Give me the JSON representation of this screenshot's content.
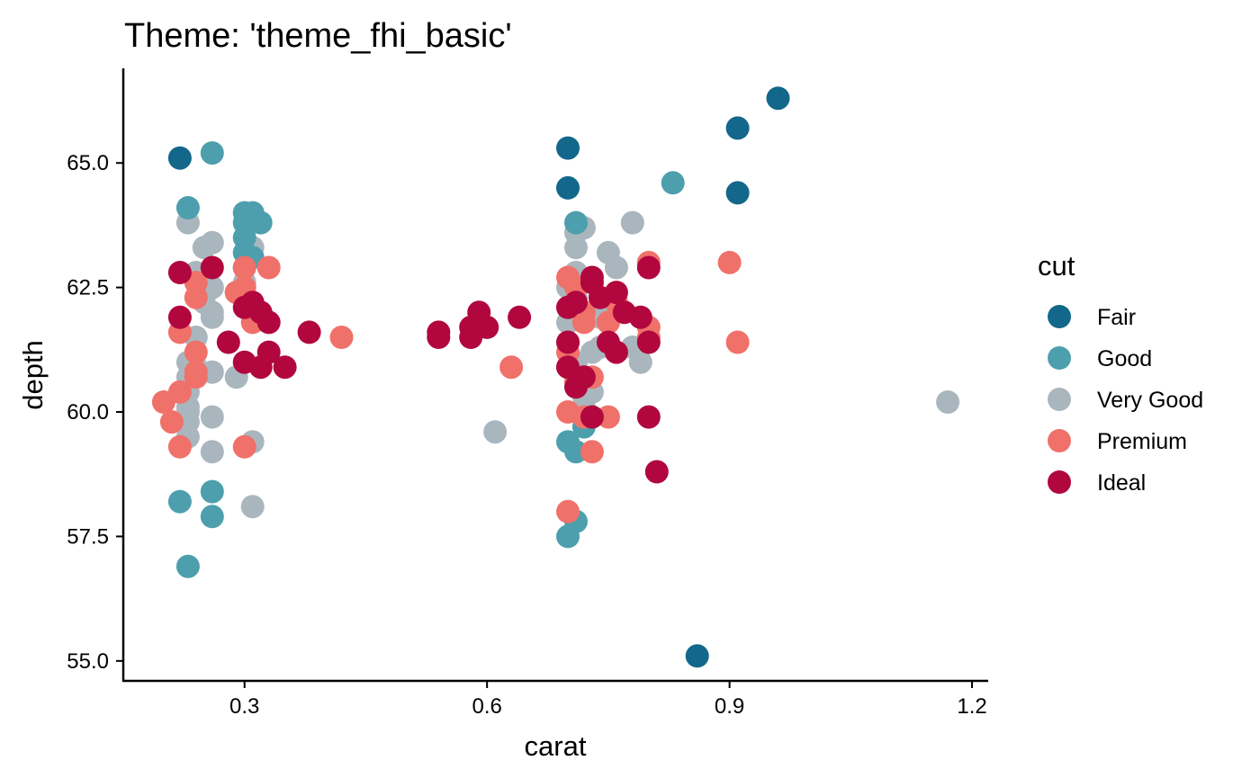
{
  "chart_data": {
    "type": "scatter",
    "title": "Theme: 'theme_fhi_basic'",
    "xlabel": "carat",
    "ylabel": "depth",
    "xlim": [
      0.15,
      1.22
    ],
    "ylim": [
      54.6,
      66.9
    ],
    "x_ticks": [
      {
        "value": 0.3,
        "label": "0.3"
      },
      {
        "value": 0.6,
        "label": "0.6"
      },
      {
        "value": 0.9,
        "label": "0.9"
      },
      {
        "value": 1.2,
        "label": "1.2"
      }
    ],
    "y_ticks": [
      {
        "value": 55.0,
        "label": "55.0"
      },
      {
        "value": 57.5,
        "label": "57.5"
      },
      {
        "value": 60.0,
        "label": "60.0"
      },
      {
        "value": 62.5,
        "label": "62.5"
      },
      {
        "value": 65.0,
        "label": "65.0"
      }
    ],
    "grid": false,
    "legend": {
      "title": "cut",
      "position": "right",
      "entries": [
        {
          "label": "Fair",
          "color": "#12678a"
        },
        {
          "label": "Good",
          "color": "#4d9fad"
        },
        {
          "label": "Very Good",
          "color": "#aab6bd"
        },
        {
          "label": "Premium",
          "color": "#f0706a"
        },
        {
          "label": "Ideal",
          "color": "#b1073e"
        }
      ]
    },
    "series": [
      {
        "name": "Very Good",
        "color": "#aab6bd",
        "points": [
          [
            0.23,
            63.8
          ],
          [
            0.25,
            63.3
          ],
          [
            0.26,
            63.4
          ],
          [
            0.24,
            62.8
          ],
          [
            0.26,
            62.5
          ],
          [
            0.25,
            62.2
          ],
          [
            0.26,
            62.0
          ],
          [
            0.26,
            61.9
          ],
          [
            0.24,
            61.5
          ],
          [
            0.23,
            61.0
          ],
          [
            0.23,
            60.7
          ],
          [
            0.23,
            60.4
          ],
          [
            0.23,
            60.1
          ],
          [
            0.23,
            59.8
          ],
          [
            0.23,
            59.5
          ],
          [
            0.26,
            60.8
          ],
          [
            0.26,
            59.9
          ],
          [
            0.26,
            59.2
          ],
          [
            0.29,
            60.7
          ],
          [
            0.31,
            59.4
          ],
          [
            0.31,
            58.1
          ],
          [
            0.31,
            63.3
          ],
          [
            0.32,
            61.9
          ],
          [
            0.3,
            62.6
          ],
          [
            0.23,
            60.0
          ],
          [
            0.24,
            60.9
          ],
          [
            0.29,
            62.4
          ],
          [
            0.71,
            63.6
          ],
          [
            0.72,
            63.7
          ],
          [
            0.71,
            63.3
          ],
          [
            0.71,
            62.8
          ],
          [
            0.7,
            62.5
          ],
          [
            0.7,
            62.1
          ],
          [
            0.7,
            61.8
          ],
          [
            0.7,
            61.4
          ],
          [
            0.71,
            61.0
          ],
          [
            0.71,
            60.7
          ],
          [
            0.71,
            60.5
          ],
          [
            0.72,
            60.3
          ],
          [
            0.73,
            60.4
          ],
          [
            0.73,
            61.2
          ],
          [
            0.74,
            61.3
          ],
          [
            0.74,
            62.2
          ],
          [
            0.75,
            63.2
          ],
          [
            0.76,
            62.9
          ],
          [
            0.78,
            63.8
          ],
          [
            0.78,
            61.3
          ],
          [
            0.79,
            61.0
          ],
          [
            0.61,
            59.6
          ],
          [
            1.17,
            60.2
          ],
          [
            0.72,
            60.1
          ],
          [
            0.74,
            61.9
          ],
          [
            0.71,
            62.3
          ]
        ]
      },
      {
        "name": "Good",
        "color": "#4d9fad",
        "points": [
          [
            0.23,
            64.1
          ],
          [
            0.26,
            65.2
          ],
          [
            0.3,
            64.0
          ],
          [
            0.31,
            64.0
          ],
          [
            0.3,
            63.8
          ],
          [
            0.32,
            63.8
          ],
          [
            0.3,
            63.5
          ],
          [
            0.3,
            63.2
          ],
          [
            0.31,
            63.1
          ],
          [
            0.3,
            62.9
          ],
          [
            0.22,
            58.2
          ],
          [
            0.26,
            58.4
          ],
          [
            0.26,
            57.9
          ],
          [
            0.23,
            56.9
          ],
          [
            0.71,
            63.8
          ],
          [
            0.83,
            64.6
          ],
          [
            0.72,
            59.7
          ],
          [
            0.7,
            59.4
          ],
          [
            0.71,
            59.2
          ],
          [
            0.71,
            57.8
          ],
          [
            0.7,
            57.5
          ]
        ]
      },
      {
        "name": "Premium",
        "color": "#f0706a",
        "points": [
          [
            0.22,
            61.6
          ],
          [
            0.2,
            60.2
          ],
          [
            0.21,
            59.8
          ],
          [
            0.22,
            60.4
          ],
          [
            0.22,
            59.3
          ],
          [
            0.24,
            61.2
          ],
          [
            0.24,
            60.8
          ],
          [
            0.24,
            60.7
          ],
          [
            0.24,
            62.3
          ],
          [
            0.24,
            62.6
          ],
          [
            0.3,
            62.9
          ],
          [
            0.3,
            62.5
          ],
          [
            0.3,
            62.3
          ],
          [
            0.29,
            62.4
          ],
          [
            0.31,
            61.8
          ],
          [
            0.33,
            62.9
          ],
          [
            0.3,
            59.3
          ],
          [
            0.42,
            61.5
          ],
          [
            0.63,
            60.9
          ],
          [
            0.7,
            62.7
          ],
          [
            0.71,
            62.5
          ],
          [
            0.72,
            62.0
          ],
          [
            0.72,
            61.8
          ],
          [
            0.7,
            61.2
          ],
          [
            0.7,
            60.9
          ],
          [
            0.71,
            60.6
          ],
          [
            0.7,
            60.0
          ],
          [
            0.72,
            59.9
          ],
          [
            0.73,
            59.2
          ],
          [
            0.7,
            58.0
          ],
          [
            0.73,
            60.7
          ],
          [
            0.75,
            59.9
          ],
          [
            0.75,
            61.8
          ],
          [
            0.76,
            62.2
          ],
          [
            0.8,
            63.0
          ],
          [
            0.8,
            61.7
          ],
          [
            0.8,
            61.5
          ],
          [
            0.9,
            63.0
          ],
          [
            0.91,
            61.4
          ]
        ]
      },
      {
        "name": "Ideal",
        "color": "#b1073e",
        "points": [
          [
            0.22,
            62.8
          ],
          [
            0.22,
            61.9
          ],
          [
            0.26,
            62.9
          ],
          [
            0.28,
            61.4
          ],
          [
            0.3,
            62.1
          ],
          [
            0.31,
            62.2
          ],
          [
            0.32,
            62.0
          ],
          [
            0.33,
            61.8
          ],
          [
            0.33,
            61.2
          ],
          [
            0.32,
            60.9
          ],
          [
            0.3,
            61.0
          ],
          [
            0.35,
            60.9
          ],
          [
            0.38,
            61.6
          ],
          [
            0.54,
            61.5
          ],
          [
            0.54,
            61.6
          ],
          [
            0.58,
            61.5
          ],
          [
            0.58,
            61.7
          ],
          [
            0.59,
            62.0
          ],
          [
            0.6,
            61.7
          ],
          [
            0.64,
            61.9
          ],
          [
            0.7,
            62.1
          ],
          [
            0.71,
            62.2
          ],
          [
            0.73,
            62.6
          ],
          [
            0.73,
            62.7
          ],
          [
            0.74,
            62.3
          ],
          [
            0.76,
            62.4
          ],
          [
            0.75,
            61.4
          ],
          [
            0.76,
            61.2
          ],
          [
            0.77,
            62.0
          ],
          [
            0.79,
            61.9
          ],
          [
            0.8,
            61.4
          ],
          [
            0.8,
            62.9
          ],
          [
            0.8,
            59.9
          ],
          [
            0.81,
            58.8
          ],
          [
            0.72,
            60.7
          ],
          [
            0.71,
            60.5
          ],
          [
            0.73,
            59.9
          ],
          [
            0.7,
            61.4
          ],
          [
            0.7,
            60.9
          ]
        ]
      },
      {
        "name": "Fair",
        "color": "#12678a",
        "points": [
          [
            0.22,
            65.1
          ],
          [
            0.7,
            65.3
          ],
          [
            0.7,
            64.5
          ],
          [
            0.91,
            65.7
          ],
          [
            0.96,
            66.3
          ],
          [
            0.91,
            64.4
          ],
          [
            0.86,
            55.1
          ]
        ]
      }
    ]
  }
}
